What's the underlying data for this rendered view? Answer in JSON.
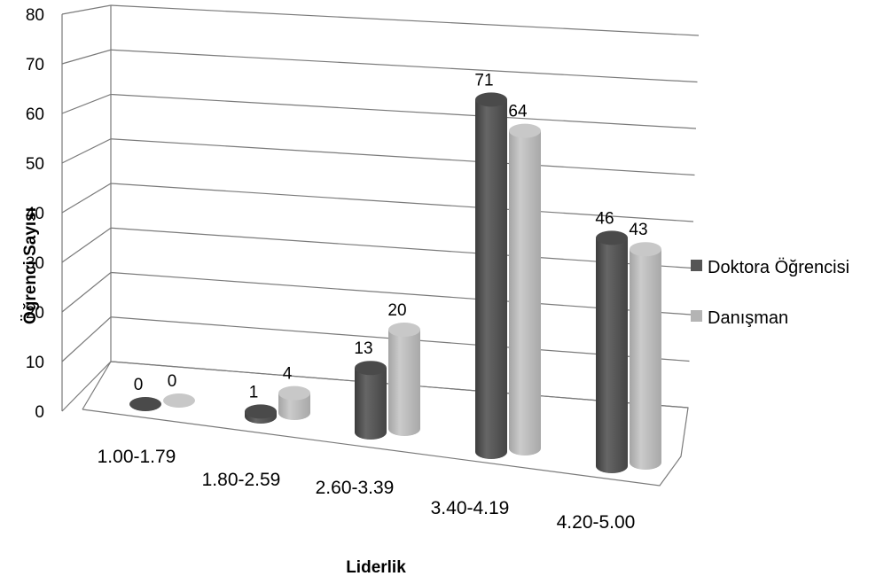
{
  "chart_data": {
    "type": "bar",
    "style": "3d-cylinder-clustered",
    "categories": [
      "1.00-1.79",
      "1.80-2.59",
      "2.60-3.39",
      "3.40-4.19",
      "4.20-5.00"
    ],
    "series": [
      {
        "name": "Doktora Öğrencisi",
        "values": [
          0,
          1,
          13,
          71,
          46
        ],
        "color": "#555555"
      },
      {
        "name": "Danışman",
        "values": [
          0,
          4,
          20,
          64,
          43
        ],
        "color": "#b4b4b4"
      }
    ],
    "xlabel": "Liderlik",
    "ylabel": "Öğrenci Sayısı",
    "ylim": [
      0,
      80
    ],
    "yticks": [
      0,
      10,
      20,
      30,
      40,
      50,
      60,
      70,
      80
    ],
    "grid": true,
    "legend": "right"
  }
}
